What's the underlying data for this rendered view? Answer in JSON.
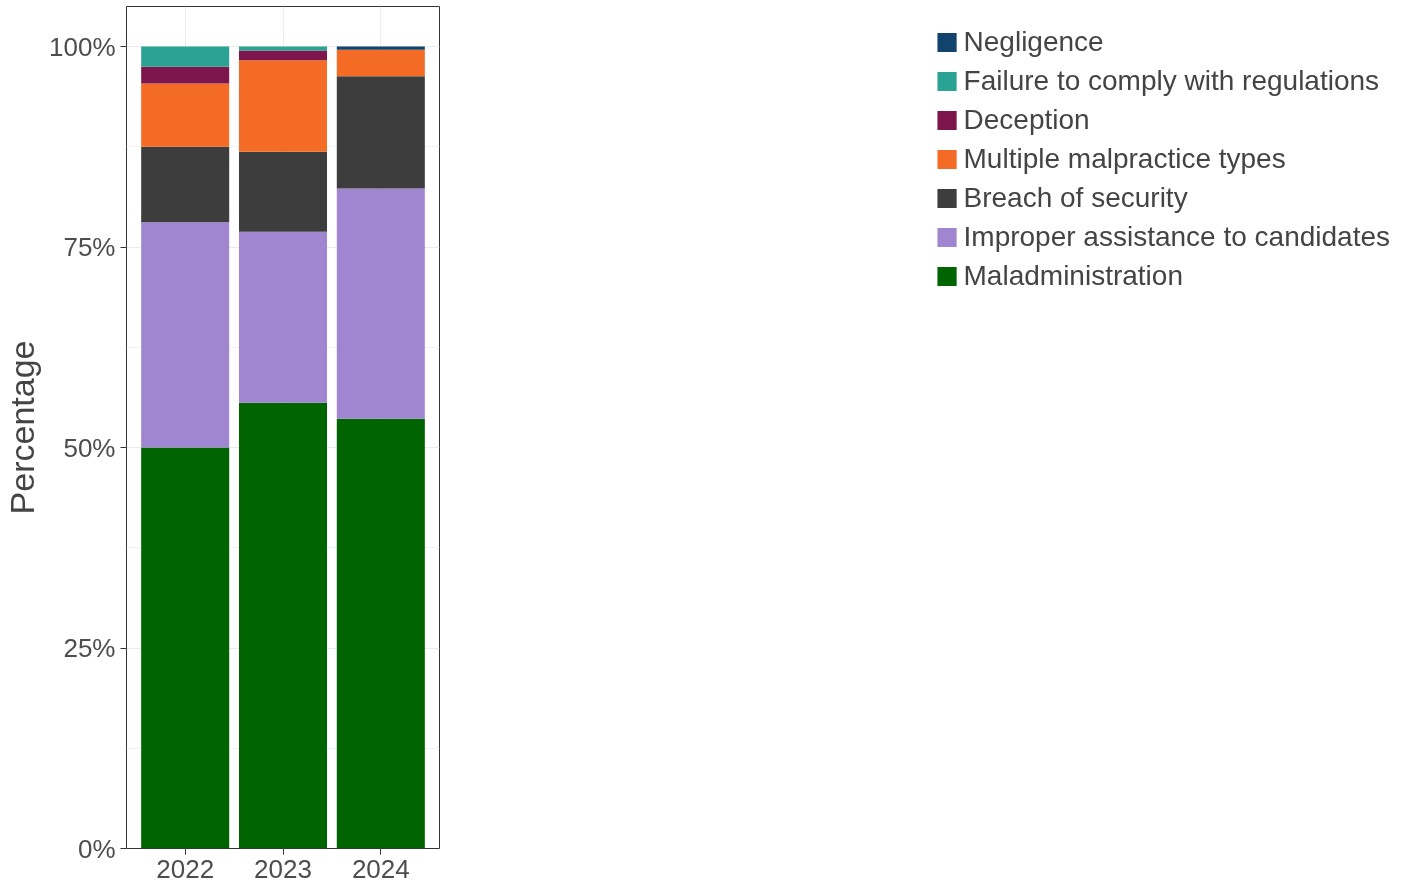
{
  "chart_data": {
    "type": "bar",
    "stacked": true,
    "ylabel": "Percentage",
    "categories": [
      "2022",
      "2023",
      "2024"
    ],
    "series": [
      {
        "name": "Maladministration",
        "color": "#006400",
        "values": [
          50.0,
          55.6,
          53.6
        ]
      },
      {
        "name": "Improper assistance to candidates",
        "color": "#a086d0",
        "values": [
          28.1,
          21.3,
          28.7
        ]
      },
      {
        "name": "Breach of security",
        "color": "#3d3d3d",
        "values": [
          9.4,
          10.0,
          14.0
        ]
      },
      {
        "name": "Multiple malpractice types",
        "color": "#f46b25",
        "values": [
          7.9,
          11.4,
          3.3
        ]
      },
      {
        "name": "Deception",
        "color": "#7e164e",
        "values": [
          2.1,
          1.2,
          0
        ]
      },
      {
        "name": "Failure to comply with regulations",
        "color": "#2aa394",
        "values": [
          2.5,
          0.5,
          0
        ]
      },
      {
        "name": "Negligence",
        "color": "#12436d",
        "values": [
          0,
          0,
          0.4
        ]
      }
    ],
    "ylim": [
      0,
      105
    ],
    "yticks": [
      {
        "value": 0,
        "label": "0%"
      },
      {
        "value": 25,
        "label": "25%"
      },
      {
        "value": 50,
        "label": "50%"
      },
      {
        "value": 75,
        "label": "75%"
      },
      {
        "value": 100,
        "label": "100%"
      }
    ],
    "grid": true,
    "legend": "right"
  }
}
